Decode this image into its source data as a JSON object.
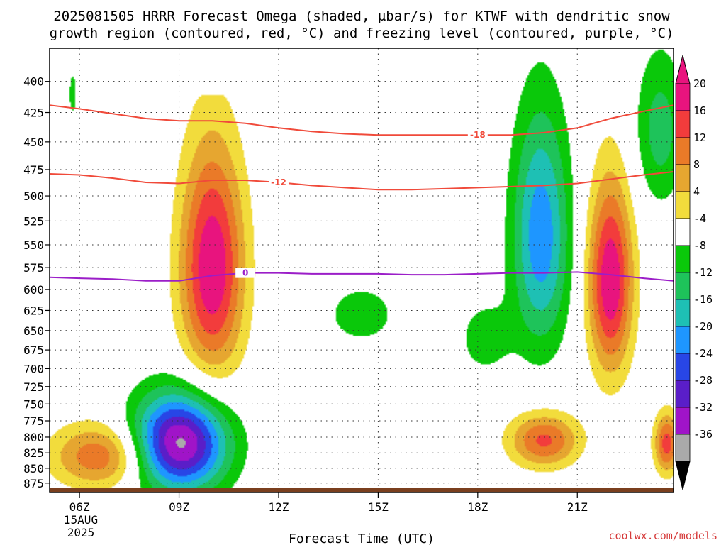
{
  "chart_data": {
    "type": "contour",
    "title_lines": [
      "2025081505 HRRR Forecast Omega (shaded, μbar/s) for KTWF with dendritic snow",
      "growth region (contoured, red, °C) and freezing level (contoured, purple, °C)"
    ],
    "xlabel": "Forecast Time (UTC)",
    "ylabel": "",
    "x_ticks": [
      {
        "label": "06Z",
        "t": 6
      },
      {
        "label": "09Z",
        "t": 9
      },
      {
        "label": "12Z",
        "t": 12
      },
      {
        "label": "15Z",
        "t": 15
      },
      {
        "label": "18Z",
        "t": 18
      },
      {
        "label": "21Z",
        "t": 21
      }
    ],
    "x_date_label": [
      "15AUG",
      "2025"
    ],
    "xlim": [
      5.1,
      23.9
    ],
    "y_ticks": [
      400,
      425,
      450,
      475,
      500,
      525,
      550,
      575,
      600,
      625,
      650,
      675,
      700,
      725,
      750,
      775,
      800,
      825,
      850,
      875
    ],
    "ylim": [
      375,
      885
    ],
    "y_axis": "log-pressure, inverted (hPa)",
    "grid": "dotted",
    "credit": "coolwx.com/models",
    "colorbar": {
      "labels": [
        "20",
        "16",
        "12",
        "8",
        "4",
        "-4",
        "-8",
        "-12",
        "-16",
        "-20",
        "-24",
        "-28",
        "-32",
        "-36"
      ],
      "bins": [
        {
          "lo": 20,
          "hi": 24,
          "color": "#e8147e"
        },
        {
          "lo": 16,
          "hi": 20,
          "color": "#f23c3c"
        },
        {
          "lo": 12,
          "hi": 16,
          "color": "#ea7a28"
        },
        {
          "lo": 8,
          "hi": 12,
          "color": "#e6a630"
        },
        {
          "lo": 4,
          "hi": 8,
          "color": "#f2dc3c"
        },
        {
          "lo": -4,
          "hi": 4,
          "color": "#ffffff"
        },
        {
          "lo": -8,
          "hi": -4,
          "color": "#0ac80a"
        },
        {
          "lo": -12,
          "hi": -8,
          "color": "#1ec35a"
        },
        {
          "lo": -16,
          "hi": -12,
          "color": "#1ec0b4"
        },
        {
          "lo": -20,
          "hi": -16,
          "color": "#1e96ff"
        },
        {
          "lo": -24,
          "hi": -20,
          "color": "#2846e6"
        },
        {
          "lo": -28,
          "hi": -24,
          "color": "#5a1ec8"
        },
        {
          "lo": -32,
          "hi": -28,
          "color": "#a014c8"
        },
        {
          "lo": -36,
          "hi": -32,
          "color": "#aaaaaa"
        }
      ],
      "extend_top_color": "#e8147e",
      "extend_bottom_color": "#000000"
    },
    "omega_features": [
      {
        "t": 10.0,
        "p": 575,
        "rx": 1.0,
        "ry": 135,
        "peak": 24
      },
      {
        "t": 9.0,
        "p": 810,
        "rx": 1.5,
        "ry": 80,
        "peak": -34
      },
      {
        "t": 6.7,
        "p": 830,
        "rx": 1.6,
        "ry": 55,
        "peak": 16
      },
      {
        "t": 14.5,
        "p": 630,
        "rx": 1.3,
        "ry": 45,
        "peak": -6
      },
      {
        "t": 18.2,
        "p": 660,
        "rx": 0.9,
        "ry": 55,
        "peak": -6
      },
      {
        "t": 19.9,
        "p": 540,
        "rx": 0.9,
        "ry": 130,
        "peak": -19
      },
      {
        "t": 22.0,
        "p": 590,
        "rx": 0.7,
        "ry": 115,
        "peak": 24
      },
      {
        "t": 20.0,
        "p": 805,
        "rx": 1.1,
        "ry": 45,
        "peak": 17
      },
      {
        "t": 23.7,
        "p": 810,
        "rx": 0.4,
        "ry": 50,
        "peak": 18
      },
      {
        "t": 23.5,
        "p": 440,
        "rx": 0.8,
        "ry": 70,
        "peak": -10
      },
      {
        "t": 10.0,
        "p": 385,
        "rx": 0.3,
        "ry": 20,
        "peak": -5
      },
      {
        "t": 5.8,
        "p": 410,
        "rx": 0.2,
        "ry": 30,
        "peak": -5
      }
    ],
    "isotherms": [
      {
        "name": "-18",
        "color": "#f04a3a",
        "points": [
          [
            5.1,
            419
          ],
          [
            6,
            422
          ],
          [
            7,
            426
          ],
          [
            8,
            430
          ],
          [
            9,
            432
          ],
          [
            10,
            432
          ],
          [
            11,
            434
          ],
          [
            12,
            438
          ],
          [
            13,
            441
          ],
          [
            14,
            443
          ],
          [
            15,
            444
          ],
          [
            16,
            444
          ],
          [
            17,
            444
          ],
          [
            18,
            444
          ],
          [
            19,
            444
          ],
          [
            20,
            442
          ],
          [
            21,
            438
          ],
          [
            22,
            430
          ],
          [
            23,
            424
          ],
          [
            23.9,
            419
          ]
        ],
        "label_at": 18.0
      },
      {
        "name": "-12",
        "color": "#f04a3a",
        "points": [
          [
            5.1,
            479
          ],
          [
            6,
            480
          ],
          [
            7,
            483
          ],
          [
            8,
            487
          ],
          [
            9,
            488
          ],
          [
            10,
            485
          ],
          [
            11,
            485
          ],
          [
            12,
            487
          ],
          [
            13,
            490
          ],
          [
            14,
            492
          ],
          [
            15,
            494
          ],
          [
            16,
            494
          ],
          [
            17,
            493
          ],
          [
            18,
            492
          ],
          [
            19,
            491
          ],
          [
            20,
            490
          ],
          [
            21,
            488
          ],
          [
            22,
            484
          ],
          [
            23,
            480
          ],
          [
            23.9,
            477
          ]
        ],
        "label_at": 12.0
      },
      {
        "name": "0",
        "color": "#9b1ec8",
        "points": [
          [
            5.1,
            586
          ],
          [
            6,
            587
          ],
          [
            7,
            588
          ],
          [
            8,
            590
          ],
          [
            9,
            590
          ],
          [
            10,
            584
          ],
          [
            11,
            581
          ],
          [
            12,
            581
          ],
          [
            13,
            582
          ],
          [
            14,
            582
          ],
          [
            15,
            582
          ],
          [
            16,
            583
          ],
          [
            17,
            583
          ],
          [
            18,
            582
          ],
          [
            19,
            581
          ],
          [
            20,
            581
          ],
          [
            21,
            580
          ],
          [
            22,
            583
          ],
          [
            23,
            587
          ],
          [
            23.9,
            590
          ]
        ],
        "label_at": 11.0
      }
    ]
  }
}
